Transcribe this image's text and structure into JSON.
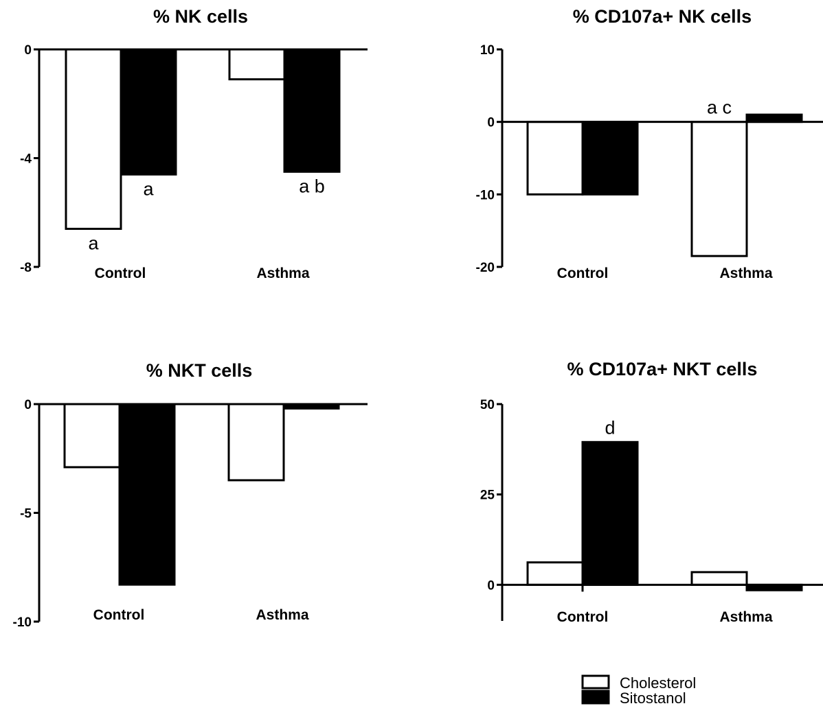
{
  "chart_data": [
    {
      "type": "bar",
      "title": "% NK cells",
      "categories": [
        "Control",
        "Asthma"
      ],
      "series": [
        {
          "name": "Cholesterol",
          "values": [
            -6.6,
            -1.1
          ]
        },
        {
          "name": "Sitostanol",
          "values": [
            -4.6,
            -4.5
          ]
        }
      ],
      "ylim": [
        -8,
        0
      ],
      "yticks": [
        0,
        -4,
        -8
      ],
      "ytick_labels": [
        "0",
        "-4",
        "-8"
      ],
      "annotations": [
        {
          "category": "Control",
          "series": "Cholesterol",
          "text": "a"
        },
        {
          "category": "Control",
          "series": "Sitostanol",
          "text": "a"
        },
        {
          "category": "Asthma",
          "series": "Sitostanol",
          "text": "a b"
        }
      ]
    },
    {
      "type": "bar",
      "title": "% CD107a+ NK cells",
      "categories": [
        "Control",
        "Asthma"
      ],
      "series": [
        {
          "name": "Cholesterol",
          "values": [
            -10,
            -18.5
          ]
        },
        {
          "name": "Sitostanol",
          "values": [
            -10,
            1
          ]
        }
      ],
      "ylim": [
        -20,
        10
      ],
      "yticks": [
        10,
        0,
        -10,
        -20
      ],
      "ytick_labels": [
        "10",
        "0",
        "-10",
        "-20"
      ],
      "annotations": [
        {
          "category": "Asthma",
          "series": "Cholesterol",
          "text": "a c"
        }
      ]
    },
    {
      "type": "bar",
      "title": "% NKT cells",
      "categories": [
        "Control",
        "Asthma"
      ],
      "series": [
        {
          "name": "Cholesterol",
          "values": [
            -2.9,
            -3.5
          ]
        },
        {
          "name": "Sitostanol",
          "values": [
            -8.3,
            -0.2
          ]
        }
      ],
      "ylim": [
        -10,
        0
      ],
      "yticks": [
        0,
        -5,
        -10
      ],
      "ytick_labels": [
        "0",
        "-5",
        "-10"
      ],
      "annotations": []
    },
    {
      "type": "bar",
      "title": "% CD107a+ NKT cells",
      "categories": [
        "Control",
        "Asthma"
      ],
      "series": [
        {
          "name": "Cholesterol",
          "values": [
            6.2,
            3.5
          ]
        },
        {
          "name": "Sitostanol",
          "values": [
            39.5,
            -1.5
          ]
        }
      ],
      "ylim": [
        -10,
        50
      ],
      "yticks": [
        50,
        25,
        0
      ],
      "ytick_labels": [
        "50",
        "25",
        "0"
      ],
      "annotations": [
        {
          "category": "Control",
          "series": "Sitostanol",
          "text": "d"
        }
      ]
    }
  ],
  "legend": {
    "items": [
      {
        "label": "Cholesterol",
        "fill": "#ffffff"
      },
      {
        "label": "Sitostanol",
        "fill": "#000000"
      }
    ]
  },
  "colors": {
    "cholesterol": "#ffffff",
    "sitostanol": "#000000",
    "outline": "#000000"
  }
}
